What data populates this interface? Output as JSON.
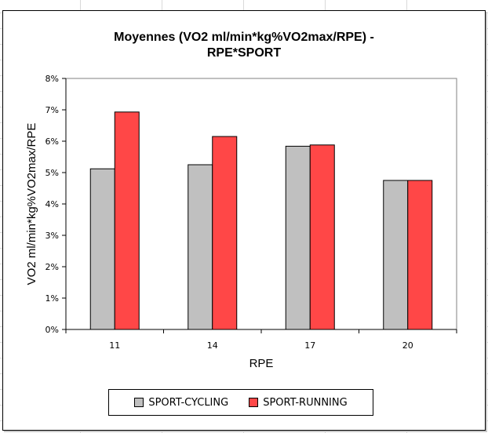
{
  "chart_data": {
    "type": "bar",
    "title": [
      "Moyennes (VO2 ml/min*kg%VO2max/RPE) -",
      "RPE*SPORT"
    ],
    "xlabel": "RPE",
    "ylabel": "VO2 ml/min*kg%VO2max/RPE",
    "categories": [
      "11",
      "14",
      "17",
      "20"
    ],
    "y_ticks": [
      "0%",
      "1%",
      "2%",
      "3%",
      "4%",
      "5%",
      "6%",
      "7%",
      "8%"
    ],
    "ylim": [
      0,
      0.08
    ],
    "grid": false,
    "legend_position": "bottom",
    "series": [
      {
        "name": "SPORT-CYCLING",
        "color": "#c0c0c0",
        "values": [
          0.0512,
          0.0525,
          0.0584,
          0.0475
        ]
      },
      {
        "name": "SPORT-RUNNING",
        "color": "#ff4747",
        "values": [
          0.0693,
          0.0615,
          0.0588,
          0.0475
        ]
      }
    ]
  }
}
